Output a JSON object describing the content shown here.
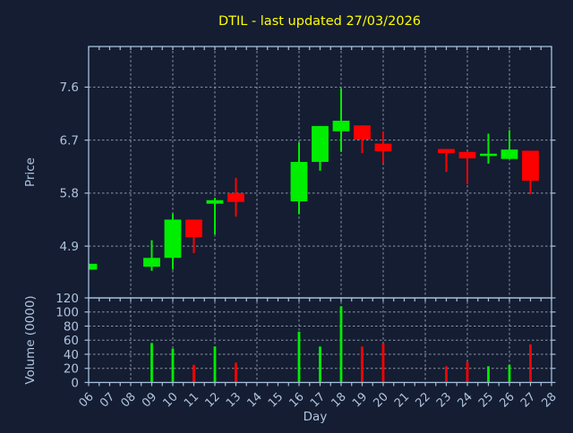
{
  "chart_data": {
    "type": "candlestick_with_volume",
    "title": "DTIL - last updated 27/03/2026",
    "xlabel": "Day",
    "price_axis": {
      "label": "Price",
      "ticks": [
        4.9,
        5.8,
        6.7,
        7.6
      ],
      "range": [
        4.02,
        8.29
      ],
      "grid": true
    },
    "volume_axis": {
      "label": "Volume (0000)",
      "ticks": [
        0,
        20,
        40,
        60,
        80,
        100,
        120
      ],
      "range": [
        0,
        120
      ],
      "grid": true
    },
    "x_axis": {
      "tick_labels": [
        "06",
        "07",
        "08",
        "09",
        "10",
        "11",
        "12",
        "13",
        "14",
        "15",
        "16",
        "17",
        "18",
        "19",
        "20",
        "21",
        "22",
        "23",
        "24",
        "25",
        "26",
        "27",
        "28"
      ],
      "range": [
        6,
        28
      ],
      "gridline_every_days": 2,
      "label_rotation_deg": 45
    },
    "legend": "none",
    "candles": [
      {
        "day": 6,
        "open": 4.5,
        "high": 4.6,
        "low": 4.5,
        "close": 4.6,
        "volume": 0
      },
      {
        "day": 9,
        "open": 4.55,
        "high": 5.0,
        "low": 4.48,
        "close": 4.7,
        "volume": 56
      },
      {
        "day": 10,
        "open": 4.7,
        "high": 5.45,
        "low": 4.5,
        "close": 5.35,
        "volume": 48
      },
      {
        "day": 11,
        "open": 5.35,
        "high": 5.35,
        "low": 4.78,
        "close": 5.05,
        "volume": 25
      },
      {
        "day": 12,
        "open": 5.62,
        "high": 5.72,
        "low": 5.1,
        "close": 5.68,
        "volume": 51
      },
      {
        "day": 13,
        "open": 5.8,
        "high": 6.06,
        "low": 5.4,
        "close": 5.65,
        "volume": 28
      },
      {
        "day": 16,
        "open": 5.66,
        "high": 6.66,
        "low": 5.44,
        "close": 6.33,
        "volume": 72
      },
      {
        "day": 17,
        "open": 6.33,
        "high": 6.94,
        "low": 6.18,
        "close": 6.94,
        "volume": 51
      },
      {
        "day": 18,
        "open": 6.85,
        "high": 7.58,
        "low": 6.5,
        "close": 7.03,
        "volume": 108
      },
      {
        "day": 19,
        "open": 6.95,
        "high": 6.95,
        "low": 6.48,
        "close": 6.71,
        "volume": 51
      },
      {
        "day": 20,
        "open": 6.64,
        "high": 6.85,
        "low": 6.31,
        "close": 6.51,
        "volume": 55
      },
      {
        "day": 23,
        "open": 6.55,
        "high": 6.55,
        "low": 6.16,
        "close": 6.48,
        "volume": 23
      },
      {
        "day": 24,
        "open": 6.5,
        "high": 6.5,
        "low": 5.95,
        "close": 6.39,
        "volume": 29
      },
      {
        "day": 25,
        "open": 6.43,
        "high": 6.81,
        "low": 6.3,
        "close": 6.47,
        "volume": 23
      },
      {
        "day": 26,
        "open": 6.38,
        "high": 6.87,
        "low": 6.38,
        "close": 6.54,
        "volume": 25
      },
      {
        "day": 27,
        "open": 6.52,
        "high": 6.52,
        "low": 5.78,
        "close": 6.01,
        "volume": 54
      }
    ],
    "colors": {
      "up": "#00ee00",
      "down": "#ff0000",
      "background": "#141d32",
      "title": "#ffff00",
      "axis_text": "#b0c4de",
      "spine": "#a6c0dc",
      "grid": "#a9b4c2"
    }
  }
}
